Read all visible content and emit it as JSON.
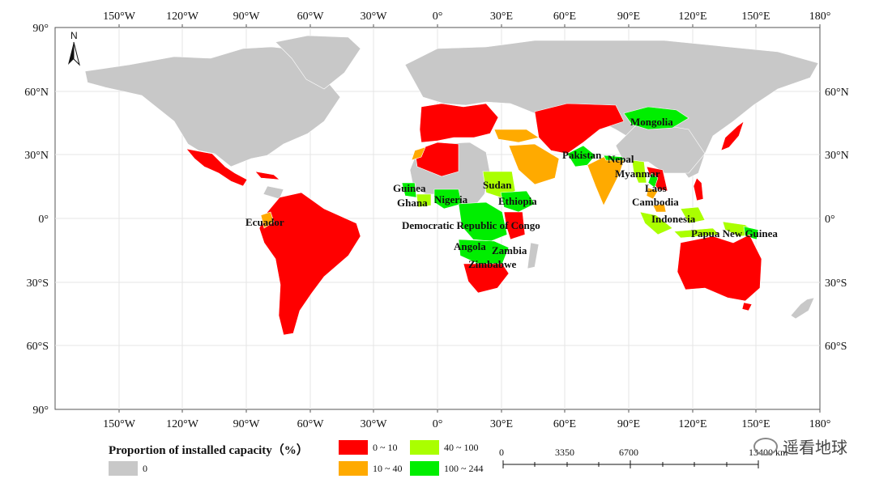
{
  "map": {
    "lon_ticks": [
      "150°W",
      "120°W",
      "90°W",
      "60°W",
      "30°W",
      "0°",
      "30°E",
      "60°E",
      "90°E",
      "120°E",
      "150°E",
      "180°"
    ],
    "lat_ticks_left": [
      "90°",
      "60°N",
      "30°N",
      "0°",
      "30°S",
      "60°S",
      "90°"
    ],
    "lat_ticks_right": [
      "60°N",
      "30°N",
      "0°",
      "30°S",
      "60°S"
    ],
    "north_arrow": "N",
    "country_labels": [
      "Mongolia",
      "Pakistan",
      "Nepal",
      "Myanmar",
      "Laos",
      "Cambodia",
      "Sudan",
      "Guinea",
      "Ghana",
      "Nigeria",
      "Ethiopia",
      "Ecuador",
      "Democratic Republic of Congo",
      "Indonesia",
      "Papua New Guinea",
      "Angola",
      "Zambia",
      "Zimbabwe"
    ]
  },
  "legend": {
    "title": "Proportion of installed capacity（%）",
    "items": [
      {
        "label": "0",
        "color": "#c8c8c8"
      },
      {
        "label": "0 ~ 10",
        "color": "#ff0000"
      },
      {
        "label": "10 ~ 40",
        "color": "#ffaa00"
      },
      {
        "label": "40 ~ 100",
        "color": "#aaff00"
      },
      {
        "label": "100 ~ 244",
        "color": "#00ee00"
      }
    ]
  },
  "scale_bar": {
    "labels": [
      "0",
      "3350",
      "6700",
      "13400 km"
    ]
  },
  "watermark": {
    "text": "遥看地球"
  }
}
